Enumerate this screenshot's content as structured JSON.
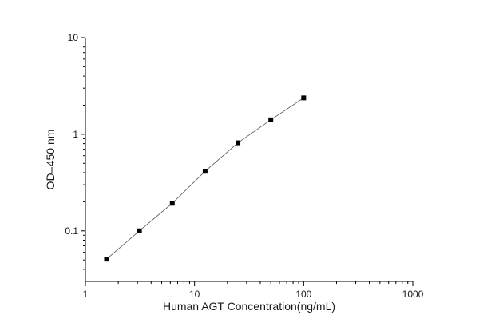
{
  "chart_data": {
    "type": "scatter",
    "xlabel": "Human AGT Concentration(ng/mL)",
    "ylabel": "OD=450 nm",
    "xscale": "log",
    "yscale": "log",
    "xlim": [
      1,
      1000
    ],
    "ylim": [
      0.03,
      10
    ],
    "x_ticks": [
      {
        "value": 1,
        "label": "1"
      },
      {
        "value": 10,
        "label": "10"
      },
      {
        "value": 100,
        "label": "100"
      },
      {
        "value": 1000,
        "label": "1000"
      }
    ],
    "y_ticks": [
      {
        "value": 0.1,
        "label": "0.1"
      },
      {
        "value": 1,
        "label": "1"
      },
      {
        "value": 10,
        "label": "10"
      }
    ],
    "grid": false,
    "legend": "none",
    "series": [
      {
        "x": [
          1.5625,
          3.125,
          6.25,
          12.5,
          25,
          50,
          100
        ],
        "y": [
          0.051,
          0.1,
          0.193,
          0.414,
          0.816,
          1.41,
          2.38
        ]
      }
    ],
    "colors": {
      "marker": "#000000",
      "line": "#555555",
      "axis": "#000000"
    }
  }
}
